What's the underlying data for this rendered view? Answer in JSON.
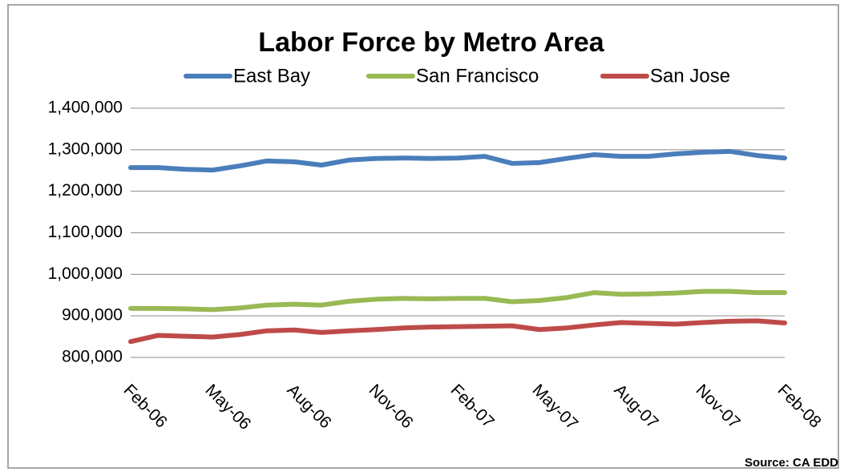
{
  "chart_data": {
    "type": "line",
    "title": "Labor Force by Metro Area",
    "categories": [
      "Feb-06",
      null,
      null,
      "May-06",
      null,
      null,
      "Aug-06",
      null,
      null,
      "Nov-06",
      null,
      null,
      "Feb-07",
      null,
      null,
      "May-07",
      null,
      null,
      "Aug-07",
      null,
      null,
      "Nov-07",
      null,
      null,
      "Feb-08"
    ],
    "series": [
      {
        "name": "East Bay",
        "color": "#4a7ebb",
        "values": [
          1257000,
          1257000,
          1253000,
          1251000,
          1261000,
          1273000,
          1271000,
          1263000,
          1275000,
          1279000,
          1280000,
          1279000,
          1280000,
          1284000,
          1267000,
          1269000,
          1279000,
          1288000,
          1284000,
          1284000,
          1290000,
          1294000,
          1296000,
          1286000,
          1280000
        ]
      },
      {
        "name": "San Francisco",
        "color": "#98b954",
        "values": [
          918000,
          918000,
          917000,
          915000,
          919000,
          926000,
          928000,
          926000,
          935000,
          940000,
          942000,
          941000,
          942000,
          942000,
          934000,
          937000,
          944000,
          956000,
          952000,
          953000,
          955000,
          959000,
          959000,
          956000,
          956000
        ]
      },
      {
        "name": "San Jose",
        "color": "#be4b48",
        "values": [
          838000,
          853000,
          851000,
          849000,
          855000,
          864000,
          866000,
          860000,
          864000,
          867000,
          871000,
          873000,
          874000,
          875000,
          876000,
          867000,
          871000,
          878000,
          884000,
          882000,
          880000,
          884000,
          887000,
          888000,
          883000
        ]
      }
    ],
    "ylim": [
      800000,
      1400000
    ],
    "yticks": [
      {
        "value": 800000,
        "label": "800,000"
      },
      {
        "value": 900000,
        "label": "900,000"
      },
      {
        "value": 1000000,
        "label": "1,000,000"
      },
      {
        "value": 1100000,
        "label": "1,100,000"
      },
      {
        "value": 1200000,
        "label": "1,200,000"
      },
      {
        "value": 1300000,
        "label": "1,300,000"
      },
      {
        "value": 1400000,
        "label": "1,400,000"
      }
    ],
    "grid": true,
    "legend": "top",
    "source": "Source: CA EDD"
  }
}
